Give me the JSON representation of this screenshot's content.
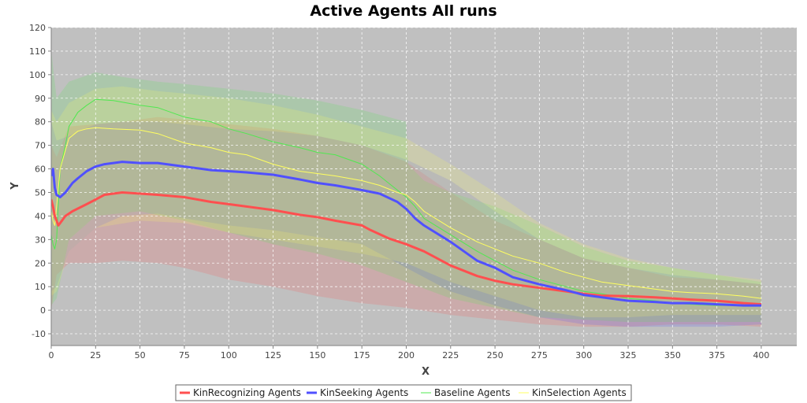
{
  "chart_data": {
    "type": "line",
    "title": "Active Agents All runs",
    "xlabel": "X",
    "ylabel": "Y",
    "xlim": [
      0,
      420
    ],
    "ylim": [
      -15,
      120
    ],
    "xticks": [
      0,
      25,
      50,
      75,
      100,
      125,
      150,
      175,
      200,
      225,
      250,
      275,
      300,
      325,
      350,
      375,
      400
    ],
    "yticks": [
      -10,
      0,
      10,
      20,
      30,
      40,
      50,
      60,
      70,
      80,
      90,
      100,
      110,
      120
    ],
    "grid": true,
    "legend": "bottom",
    "background": "#c0c0c0",
    "series": [
      {
        "name": "KinRecognizing Agents",
        "color": "#ff4f4f",
        "points": [
          [
            0,
            47
          ],
          [
            1,
            44
          ],
          [
            2,
            40
          ],
          [
            3,
            38
          ],
          [
            4,
            36
          ],
          [
            5,
            37
          ],
          [
            8,
            40
          ],
          [
            12,
            42
          ],
          [
            20,
            45
          ],
          [
            25,
            47
          ],
          [
            30,
            49
          ],
          [
            40,
            50
          ],
          [
            50,
            49.5
          ],
          [
            60,
            49
          ],
          [
            75,
            48
          ],
          [
            90,
            46
          ],
          [
            100,
            45
          ],
          [
            110,
            44
          ],
          [
            125,
            42.5
          ],
          [
            140,
            40.5
          ],
          [
            150,
            39.5
          ],
          [
            160,
            38
          ],
          [
            175,
            36
          ],
          [
            180,
            34
          ],
          [
            190,
            30.5
          ],
          [
            200,
            28
          ],
          [
            210,
            25
          ],
          [
            225,
            19
          ],
          [
            240,
            14.5
          ],
          [
            250,
            12.5
          ],
          [
            260,
            11
          ],
          [
            275,
            9.5
          ],
          [
            290,
            8
          ],
          [
            300,
            7
          ],
          [
            310,
            6.2
          ],
          [
            325,
            6
          ],
          [
            340,
            5.5
          ],
          [
            350,
            5
          ],
          [
            360,
            4.5
          ],
          [
            375,
            4
          ],
          [
            390,
            3
          ],
          [
            400,
            2.5
          ]
        ],
        "band_low": [
          [
            0,
            0
          ],
          [
            3,
            15
          ],
          [
            10,
            20
          ],
          [
            25,
            20
          ],
          [
            40,
            21
          ],
          [
            60,
            20
          ],
          [
            75,
            18
          ],
          [
            100,
            13
          ],
          [
            125,
            10
          ],
          [
            150,
            6
          ],
          [
            175,
            3
          ],
          [
            200,
            1
          ],
          [
            225,
            -2
          ],
          [
            250,
            -4
          ],
          [
            275,
            -6
          ],
          [
            300,
            -7
          ],
          [
            325,
            -7
          ],
          [
            350,
            -6
          ],
          [
            375,
            -6
          ],
          [
            400,
            -7
          ]
        ],
        "band_high": [
          [
            0,
            70
          ],
          [
            3,
            65
          ],
          [
            10,
            78
          ],
          [
            25,
            79
          ],
          [
            40,
            80
          ],
          [
            60,
            82
          ],
          [
            75,
            81
          ],
          [
            100,
            79
          ],
          [
            125,
            77
          ],
          [
            150,
            74
          ],
          [
            175,
            70
          ],
          [
            200,
            63
          ],
          [
            225,
            50
          ],
          [
            250,
            38
          ],
          [
            275,
            30
          ],
          [
            300,
            22
          ],
          [
            325,
            18
          ],
          [
            350,
            14
          ],
          [
            375,
            13
          ],
          [
            400,
            11
          ]
        ]
      },
      {
        "name": "KinSeeking Agents",
        "color": "#5050ff",
        "points": [
          [
            0,
            57
          ],
          [
            1,
            60
          ],
          [
            2,
            52
          ],
          [
            3,
            49
          ],
          [
            5,
            48
          ],
          [
            8,
            50
          ],
          [
            12,
            54
          ],
          [
            15,
            56
          ],
          [
            20,
            59
          ],
          [
            25,
            61
          ],
          [
            30,
            62
          ],
          [
            40,
            63
          ],
          [
            50,
            62.5
          ],
          [
            60,
            62.5
          ],
          [
            75,
            61
          ],
          [
            90,
            59.5
          ],
          [
            100,
            59
          ],
          [
            110,
            58.5
          ],
          [
            125,
            57.5
          ],
          [
            140,
            55.5
          ],
          [
            150,
            54
          ],
          [
            160,
            53
          ],
          [
            175,
            51
          ],
          [
            185,
            49.5
          ],
          [
            195,
            46
          ],
          [
            200,
            43
          ],
          [
            205,
            39
          ],
          [
            210,
            36
          ],
          [
            225,
            29
          ],
          [
            240,
            21
          ],
          [
            250,
            18
          ],
          [
            260,
            14
          ],
          [
            275,
            11
          ],
          [
            290,
            8.5
          ],
          [
            300,
            6.5
          ],
          [
            310,
            5.5
          ],
          [
            325,
            4
          ],
          [
            340,
            3.5
          ],
          [
            350,
            3
          ],
          [
            360,
            3
          ],
          [
            375,
            2.5
          ],
          [
            390,
            2
          ],
          [
            400,
            2
          ]
        ],
        "band_low": [
          [
            0,
            8
          ],
          [
            3,
            10
          ],
          [
            10,
            25
          ],
          [
            25,
            35
          ],
          [
            40,
            40
          ],
          [
            60,
            41
          ],
          [
            75,
            39
          ],
          [
            100,
            36
          ],
          [
            125,
            34
          ],
          [
            150,
            31
          ],
          [
            175,
            28
          ],
          [
            200,
            18
          ],
          [
            225,
            8
          ],
          [
            250,
            2
          ],
          [
            275,
            -3
          ],
          [
            300,
            -6
          ],
          [
            325,
            -7
          ],
          [
            350,
            -7
          ],
          [
            375,
            -7
          ],
          [
            400,
            -6
          ]
        ],
        "band_high": [
          [
            0,
            80
          ],
          [
            3,
            72
          ],
          [
            10,
            74
          ],
          [
            25,
            79
          ],
          [
            40,
            80
          ],
          [
            60,
            80
          ],
          [
            75,
            79
          ],
          [
            100,
            77
          ],
          [
            125,
            76
          ],
          [
            150,
            74
          ],
          [
            175,
            70
          ],
          [
            200,
            64
          ],
          [
            225,
            55
          ],
          [
            250,
            42
          ],
          [
            275,
            30
          ],
          [
            300,
            22
          ],
          [
            325,
            18
          ],
          [
            350,
            15
          ],
          [
            375,
            13
          ],
          [
            400,
            11
          ]
        ]
      },
      {
        "name": "Baseline Agents",
        "color": "#50e850",
        "points": [
          [
            0,
            32
          ],
          [
            1,
            28
          ],
          [
            2,
            26
          ],
          [
            3,
            30
          ],
          [
            5,
            60
          ],
          [
            8,
            70
          ],
          [
            10,
            78
          ],
          [
            15,
            84
          ],
          [
            20,
            87
          ],
          [
            25,
            89.5
          ],
          [
            35,
            89
          ],
          [
            50,
            87
          ],
          [
            60,
            86
          ],
          [
            75,
            82
          ],
          [
            90,
            80
          ],
          [
            100,
            77
          ],
          [
            110,
            75
          ],
          [
            125,
            71.5
          ],
          [
            140,
            69
          ],
          [
            150,
            67
          ],
          [
            160,
            66
          ],
          [
            175,
            62
          ],
          [
            185,
            57
          ],
          [
            195,
            51
          ],
          [
            200,
            48
          ],
          [
            205,
            44
          ],
          [
            210,
            39
          ],
          [
            225,
            32
          ],
          [
            240,
            25
          ],
          [
            250,
            21
          ],
          [
            260,
            17
          ],
          [
            275,
            13
          ],
          [
            290,
            10
          ],
          [
            300,
            8
          ],
          [
            310,
            7
          ],
          [
            325,
            5
          ],
          [
            340,
            4
          ],
          [
            350,
            3
          ],
          [
            360,
            2.5
          ],
          [
            375,
            2
          ],
          [
            390,
            2
          ],
          [
            400,
            2
          ]
        ],
        "band_low": [
          [
            0,
            2
          ],
          [
            3,
            5
          ],
          [
            10,
            30
          ],
          [
            25,
            40
          ],
          [
            50,
            42
          ],
          [
            75,
            38
          ],
          [
            100,
            33
          ],
          [
            125,
            28
          ],
          [
            150,
            24
          ],
          [
            175,
            19
          ],
          [
            200,
            12
          ],
          [
            225,
            5
          ],
          [
            250,
            1
          ],
          [
            275,
            -3
          ],
          [
            300,
            -4
          ],
          [
            325,
            -5
          ],
          [
            350,
            -5
          ],
          [
            400,
            -5
          ]
        ],
        "band_high": [
          [
            0,
            110
          ],
          [
            3,
            90
          ],
          [
            10,
            97
          ],
          [
            25,
            101
          ],
          [
            40,
            99
          ],
          [
            60,
            97
          ],
          [
            75,
            96
          ],
          [
            100,
            94
          ],
          [
            125,
            92
          ],
          [
            150,
            89
          ],
          [
            175,
            85
          ],
          [
            200,
            80
          ],
          [
            201,
            62
          ],
          [
            210,
            55
          ],
          [
            225,
            50
          ],
          [
            250,
            44
          ],
          [
            275,
            36
          ],
          [
            300,
            27
          ],
          [
            325,
            21
          ],
          [
            350,
            18
          ],
          [
            375,
            15
          ],
          [
            400,
            12
          ]
        ]
      },
      {
        "name": "KinSelection Agents",
        "color": "#ffff60",
        "points": [
          [
            0,
            42
          ],
          [
            1,
            38
          ],
          [
            2,
            36
          ],
          [
            3,
            44
          ],
          [
            5,
            60
          ],
          [
            8,
            68
          ],
          [
            10,
            73
          ],
          [
            15,
            76
          ],
          [
            20,
            77
          ],
          [
            25,
            77.5
          ],
          [
            35,
            77
          ],
          [
            50,
            76.5
          ],
          [
            60,
            75
          ],
          [
            75,
            71
          ],
          [
            90,
            69
          ],
          [
            100,
            67
          ],
          [
            110,
            66
          ],
          [
            125,
            62
          ],
          [
            140,
            59
          ],
          [
            150,
            58
          ],
          [
            160,
            57
          ],
          [
            175,
            55
          ],
          [
            185,
            53
          ],
          [
            195,
            50
          ],
          [
            200,
            49
          ],
          [
            205,
            46
          ],
          [
            210,
            42
          ],
          [
            225,
            35
          ],
          [
            240,
            29
          ],
          [
            250,
            26
          ],
          [
            260,
            23
          ],
          [
            275,
            20
          ],
          [
            290,
            16
          ],
          [
            300,
            14
          ],
          [
            310,
            12
          ],
          [
            325,
            10.5
          ],
          [
            340,
            9
          ],
          [
            350,
            8
          ],
          [
            360,
            7.5
          ],
          [
            375,
            7
          ],
          [
            390,
            6
          ],
          [
            400,
            5
          ]
        ],
        "band_low": [
          [
            0,
            6
          ],
          [
            3,
            8
          ],
          [
            10,
            25
          ],
          [
            25,
            35
          ],
          [
            50,
            38
          ],
          [
            75,
            37
          ],
          [
            100,
            33
          ],
          [
            125,
            30
          ],
          [
            150,
            27
          ],
          [
            175,
            24
          ],
          [
            200,
            20
          ],
          [
            225,
            12
          ],
          [
            250,
            6
          ],
          [
            275,
            0
          ],
          [
            300,
            -3
          ],
          [
            325,
            -3
          ],
          [
            350,
            -2
          ],
          [
            375,
            -2
          ],
          [
            400,
            -2
          ]
        ],
        "band_high": [
          [
            0,
            85
          ],
          [
            3,
            80
          ],
          [
            10,
            88
          ],
          [
            25,
            94
          ],
          [
            40,
            95
          ],
          [
            60,
            93
          ],
          [
            75,
            92
          ],
          [
            100,
            90
          ],
          [
            125,
            87
          ],
          [
            150,
            83
          ],
          [
            175,
            78
          ],
          [
            200,
            73
          ],
          [
            225,
            62
          ],
          [
            250,
            50
          ],
          [
            275,
            37
          ],
          [
            300,
            28
          ],
          [
            325,
            22
          ],
          [
            350,
            18
          ],
          [
            375,
            15
          ],
          [
            400,
            13
          ]
        ]
      }
    ]
  }
}
